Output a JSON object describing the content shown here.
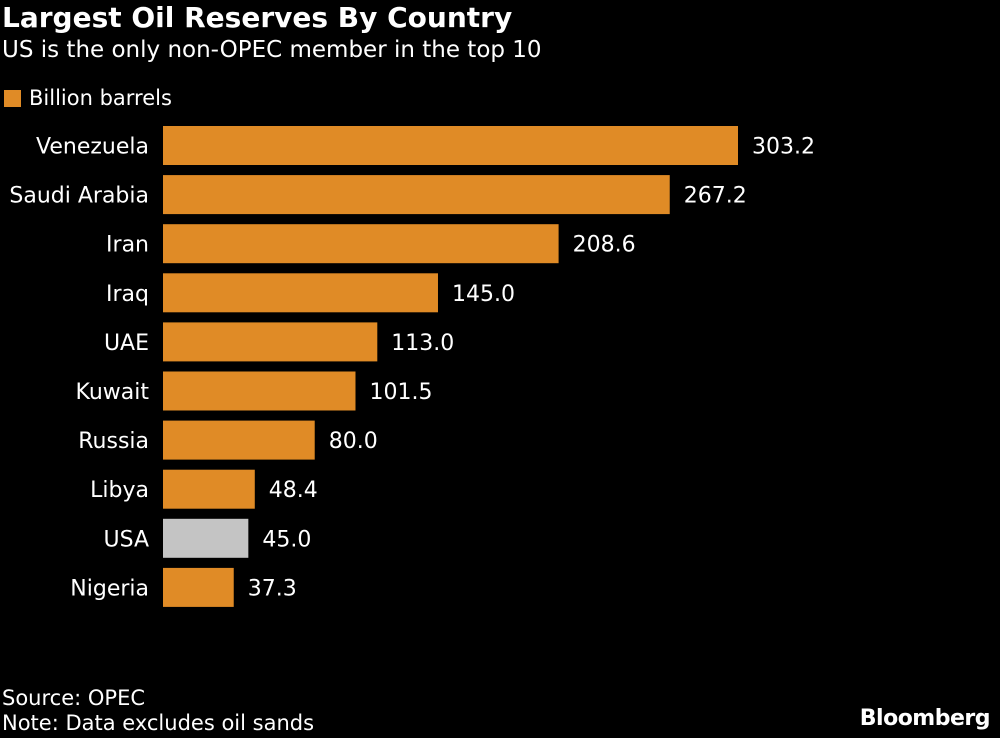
{
  "header": {
    "title": "Largest Oil Reserves By Country",
    "subtitle": "US is the only non-OPEC member in the top 10"
  },
  "legend": {
    "label": "Billion barrels",
    "color": "#e08b26"
  },
  "colors": {
    "opec": "#e08b26",
    "non_opec": "#c4c4c4",
    "text": "#ffffff",
    "background": "#000000"
  },
  "chart_data": {
    "type": "bar",
    "orientation": "horizontal",
    "title": "Largest Oil Reserves By Country",
    "subtitle": "US is the only non-OPEC member in the top 10",
    "categories": [
      "Venezuela",
      "Saudi Arabia",
      "Iran",
      "Iraq",
      "UAE",
      "Kuwait",
      "Russia",
      "Libya",
      "USA",
      "Nigeria"
    ],
    "values": [
      303.2,
      267.2,
      208.6,
      145.0,
      113.0,
      101.5,
      80.0,
      48.4,
      45.0,
      37.3
    ],
    "value_labels": [
      "303.2",
      "267.2",
      "208.6",
      "145.0",
      "113.0",
      "101.5",
      "80.0",
      "48.4",
      "45.0",
      "37.3"
    ],
    "highlight": {
      "USA": "non-OPEC"
    },
    "xlim": [
      0,
      303.2
    ],
    "grid": false,
    "legend": {
      "entries": [
        "Billion barrels"
      ],
      "position": "top-left"
    }
  },
  "footer": {
    "source": "Source: OPEC",
    "note": "Note: Data excludes oil sands",
    "brand": "Bloomberg"
  }
}
